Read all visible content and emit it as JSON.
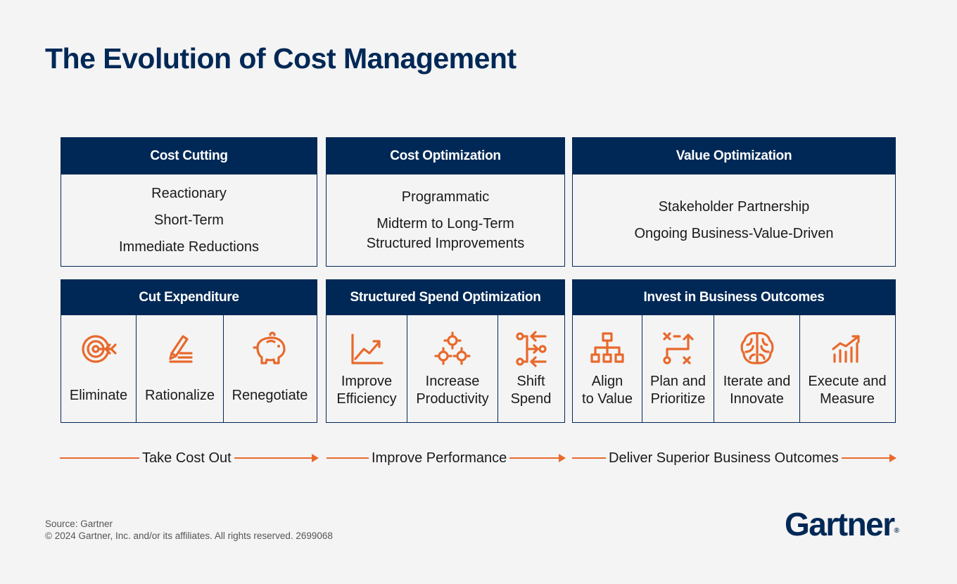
{
  "title": "The Evolution of Cost Management",
  "columns": [
    {
      "header": "Cost Cutting",
      "descriptions": [
        "Reactionary",
        "Short-Term",
        "Immediate Reductions"
      ],
      "action_header": "Cut Expenditure",
      "actions": [
        {
          "label": "Eliminate",
          "icon": "target-arrow-icon"
        },
        {
          "label": "Rationalize",
          "icon": "pencil-list-icon"
        },
        {
          "label": "Renegotiate",
          "icon": "piggy-bank-icon"
        }
      ],
      "arrow_label": "Take Cost Out"
    },
    {
      "header": "Cost Optimization",
      "descriptions": [
        "Programmatic",
        "Midterm to Long-Term",
        "Structured Improvements"
      ],
      "action_header": "Structured Spend Optimization",
      "actions": [
        {
          "label_1": "Improve",
          "label_2": "Efficiency",
          "icon": "trend-up-icon"
        },
        {
          "label_1": "Increase",
          "label_2": "Productivity",
          "icon": "gears-icon"
        },
        {
          "label_1": "Shift",
          "label_2": "Spend",
          "icon": "shift-arrows-icon"
        }
      ],
      "arrow_label": "Improve Performance"
    },
    {
      "header": "Value Optimization",
      "descriptions": [
        "Stakeholder Partnership",
        "Ongoing Business-Value-Driven"
      ],
      "action_header": "Invest in Business Outcomes",
      "actions": [
        {
          "label_1": "Align",
          "label_2": "to Value",
          "icon": "org-chart-icon"
        },
        {
          "label_1": "Plan and",
          "label_2": "Prioritize",
          "icon": "plan-path-icon"
        },
        {
          "label_1": "Iterate and",
          "label_2": "Innovate",
          "icon": "brain-icon"
        },
        {
          "label_1": "Execute and",
          "label_2": "Measure",
          "icon": "bar-chart-up-icon"
        }
      ],
      "arrow_label": "Deliver Superior Business Outcomes"
    }
  ],
  "footer": {
    "source": "Source: Gartner",
    "copyright": "© 2024 Gartner, Inc. and/or its affiliates. All rights reserved. 2699068"
  },
  "logo": {
    "text": "Gartner",
    "mark": "®"
  },
  "colors": {
    "navy": "#002856",
    "orange": "#e8692c",
    "background": "#f4f4f4"
  }
}
